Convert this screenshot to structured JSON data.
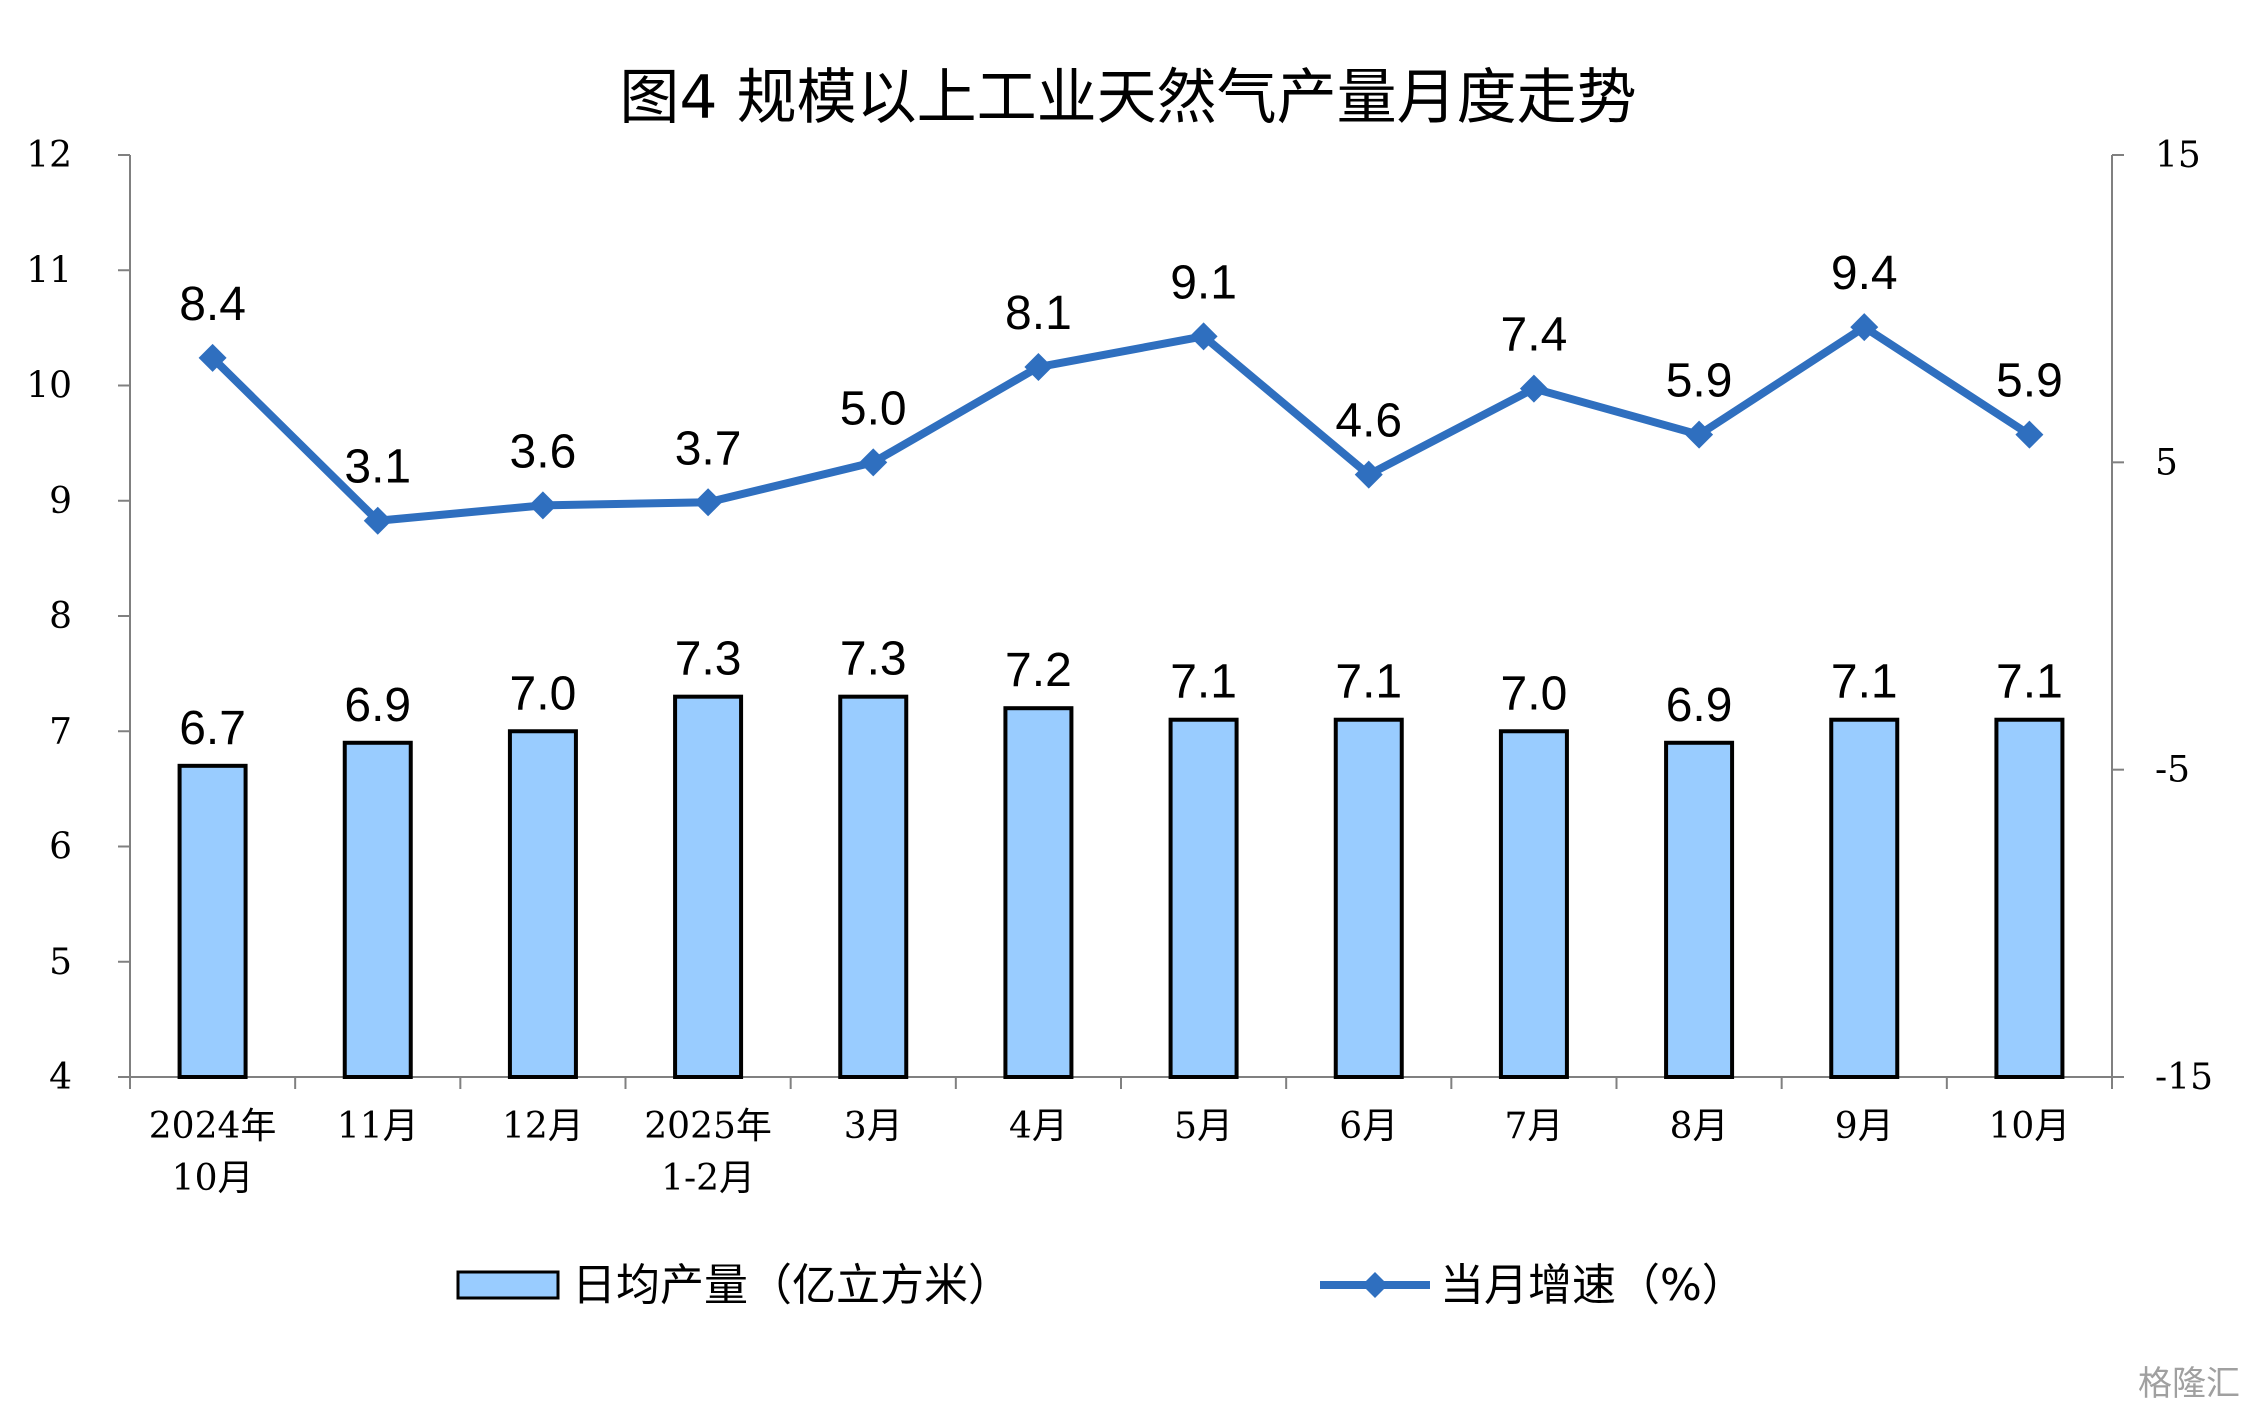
{
  "chart_data": {
    "type": "bar",
    "title": "图4  规模以上工业天然气产量月度走势",
    "categories": [
      [
        "2024年",
        "10月"
      ],
      [
        "11月"
      ],
      [
        "12月"
      ],
      [
        "2025年",
        "1-2月"
      ],
      [
        "3月"
      ],
      [
        "4月"
      ],
      [
        "5月"
      ],
      [
        "6月"
      ],
      [
        "7月"
      ],
      [
        "8月"
      ],
      [
        "9月"
      ],
      [
        "10月"
      ]
    ],
    "series": [
      {
        "name": "日均产量（亿立方米）",
        "type": "bar",
        "axis": "left",
        "values": [
          6.7,
          6.9,
          7.0,
          7.3,
          7.3,
          7.2,
          7.1,
          7.1,
          7.0,
          6.9,
          7.1,
          7.1
        ],
        "labels": [
          "6.7",
          "6.9",
          "7.0",
          "7.3",
          "7.3",
          "7.2",
          "7.1",
          "7.1",
          "7.0",
          "6.9",
          "7.1",
          "7.1"
        ],
        "color": "#99ccff",
        "stroke": "#000000"
      },
      {
        "name": "当月增速（%）",
        "type": "line",
        "axis": "right",
        "values": [
          8.4,
          3.1,
          3.6,
          3.7,
          5.0,
          8.1,
          9.1,
          4.6,
          7.4,
          5.9,
          9.4,
          5.9
        ],
        "labels": [
          "8.4",
          "3.1",
          "3.6",
          "3.7",
          "5.0",
          "8.1",
          "9.1",
          "4.6",
          "7.4",
          "5.9",
          "9.4",
          "5.9"
        ],
        "color": "#2f6fbf",
        "marker": "diamond"
      }
    ],
    "y_left": {
      "min": 4,
      "max": 12,
      "ticks": [
        "4",
        "5",
        "6",
        "7",
        "8",
        "9",
        "10",
        "11",
        "12"
      ]
    },
    "y_right": {
      "min": -15,
      "max": 15,
      "ticks": [
        "-15",
        "-5",
        "5",
        "15"
      ]
    },
    "grid": false,
    "legend_position": "bottom"
  },
  "watermark": "格隆汇"
}
